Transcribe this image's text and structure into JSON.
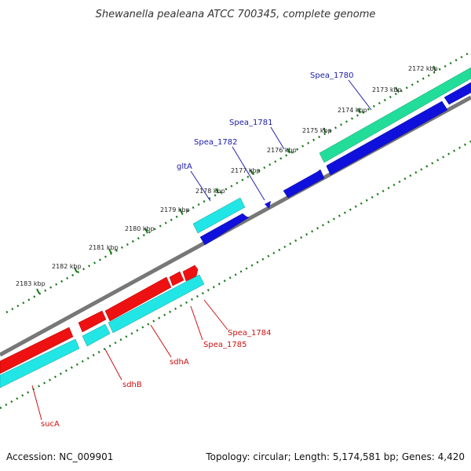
{
  "title": "Shewanella pealeana ATCC 700345, complete genome",
  "footer": {
    "accession": "Accession: NC_009901",
    "topology": "Topology: circular; Length: 5,174,581 bp; Genes: 4,420"
  },
  "ticks": [
    {
      "label": "2172 kbp",
      "kbp": 2172
    },
    {
      "label": "2173 kbp",
      "kbp": 2173
    },
    {
      "label": "2174 kbp",
      "kbp": 2174
    },
    {
      "label": "2175 kbp",
      "kbp": 2175
    },
    {
      "label": "2176 kbp",
      "kbp": 2176
    },
    {
      "label": "2177 kbp",
      "kbp": 2177
    },
    {
      "label": "2178 kbp",
      "kbp": 2178
    },
    {
      "label": "2179 kbp",
      "kbp": 2179
    },
    {
      "label": "2180 kbp",
      "kbp": 2180
    },
    {
      "label": "2181 kbp",
      "kbp": 2181
    },
    {
      "label": "2182 kbp",
      "kbp": 2182
    },
    {
      "label": "2183 kbp",
      "kbp": 2183
    }
  ],
  "gene_labels": [
    {
      "text": "Spea_1780",
      "group": "blue"
    },
    {
      "text": "Spea_1781",
      "group": "blue"
    },
    {
      "text": "Spea_1782",
      "group": "blue"
    },
    {
      "text": "gltA",
      "group": "blue"
    },
    {
      "text": "Spea_1784",
      "group": "red"
    },
    {
      "text": "Spea_1785",
      "group": "red"
    },
    {
      "text": "sdhA",
      "group": "red"
    },
    {
      "text": "sdhB",
      "group": "red"
    },
    {
      "text": "sucA",
      "group": "red"
    }
  ],
  "colors": {
    "blue_cds": "#1010dd",
    "red_cds": "#ee1111",
    "cyan_cds": "#22e6e6",
    "green_cds": "#22dd99",
    "backbone": "#777777",
    "tick": "#1a7a1a",
    "blue_leader": "#2222aa",
    "red_leader": "#cc1111"
  }
}
